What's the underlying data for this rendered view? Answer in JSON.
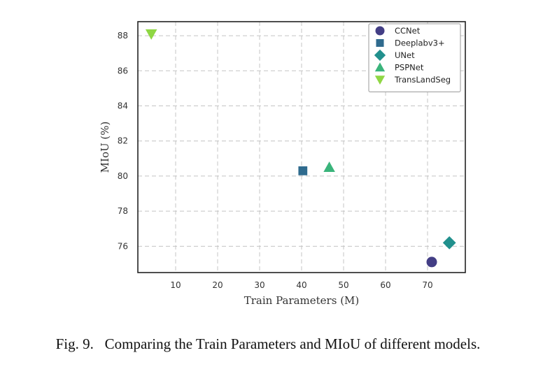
{
  "chart_data": {
    "type": "scatter",
    "title": "",
    "xlabel": "Train Parameters (M)",
    "ylabel": "MIoU (%)",
    "xlim": [
      1,
      79
    ],
    "ylim": [
      74.5,
      88.8
    ],
    "xticks": [
      10,
      20,
      30,
      40,
      50,
      60,
      70
    ],
    "yticks": [
      76,
      78,
      80,
      82,
      84,
      86,
      88
    ],
    "grid": true,
    "legend_position": "top-right",
    "series": [
      {
        "name": "CCNet",
        "x": 71.0,
        "y": 75.1,
        "marker": "circle",
        "color": "#433e85"
      },
      {
        "name": "Deeplabv3+",
        "x": 40.3,
        "y": 80.3,
        "marker": "square",
        "color": "#2f6b8e"
      },
      {
        "name": "UNet",
        "x": 75.2,
        "y": 76.2,
        "marker": "diamond",
        "color": "#21908d"
      },
      {
        "name": "PSPNet",
        "x": 46.6,
        "y": 80.5,
        "marker": "triangle-up",
        "color": "#3ab47b"
      },
      {
        "name": "TransLandSeg",
        "x": 4.2,
        "y": 88.1,
        "marker": "triangle-down",
        "color": "#8fd744"
      }
    ]
  },
  "caption": "Fig. 9.  Comparing the Train Parameters and MIoU of different models."
}
